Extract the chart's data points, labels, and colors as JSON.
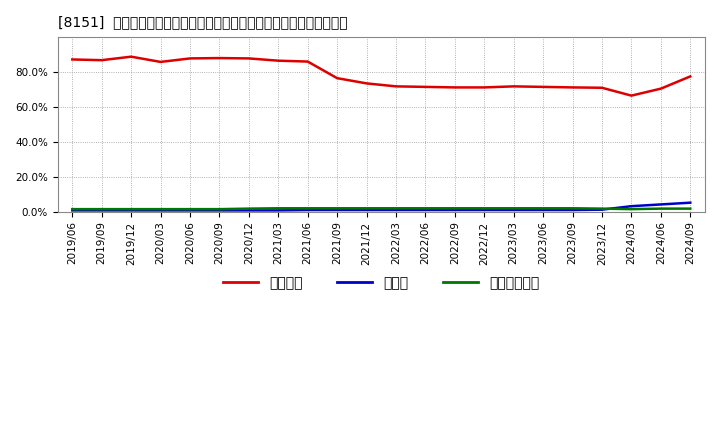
{
  "title": "[8151]  自己資本、のれん、繰延税金資産の総資産に対する比率の推移",
  "x_labels": [
    "2019/06",
    "2019/09",
    "2019/12",
    "2020/03",
    "2020/06",
    "2020/09",
    "2020/12",
    "2021/03",
    "2021/06",
    "2021/09",
    "2021/12",
    "2022/03",
    "2022/06",
    "2022/09",
    "2022/12",
    "2023/03",
    "2023/06",
    "2023/09",
    "2023/12",
    "2024/03",
    "2024/06",
    "2024/09"
  ],
  "jiko_shihon": [
    87.2,
    86.8,
    88.8,
    85.8,
    87.8,
    88.0,
    87.8,
    86.5,
    86.0,
    76.5,
    73.5,
    71.8,
    71.5,
    71.2,
    71.2,
    71.8,
    71.5,
    71.2,
    71.0,
    66.5,
    70.5,
    77.5
  ],
  "noren": [
    0.8,
    0.8,
    0.8,
    0.8,
    0.8,
    0.8,
    0.8,
    0.8,
    1.0,
    1.0,
    1.0,
    1.0,
    1.0,
    1.0,
    1.0,
    1.0,
    1.0,
    1.0,
    1.2,
    3.2,
    4.2,
    5.2
  ],
  "kurinobe_zeikin_shisan": [
    1.5,
    1.5,
    1.5,
    1.5,
    1.5,
    1.5,
    1.8,
    2.0,
    2.0,
    2.0,
    2.0,
    2.0,
    2.0,
    2.0,
    2.0,
    2.0,
    2.0,
    2.0,
    1.8,
    1.5,
    1.8,
    1.8
  ],
  "jiko_color": "#dd0000",
  "noren_color": "#0000cc",
  "kurinobe_color": "#007700",
  "legend_labels": [
    "自己資本",
    "のれん",
    "繰延税金資産"
  ],
  "ylim": [
    0,
    100
  ],
  "yticks": [
    0,
    20,
    40,
    60,
    80
  ],
  "ytick_labels": [
    "0.0%",
    "20.0%",
    "40.0%",
    "60.0%",
    "80.0%"
  ],
  "background_color": "#ffffff",
  "plot_bg_color": "#ffffff",
  "grid_color": "#999999",
  "title_fontsize": 11,
  "axis_fontsize": 7.5,
  "legend_fontsize": 9
}
